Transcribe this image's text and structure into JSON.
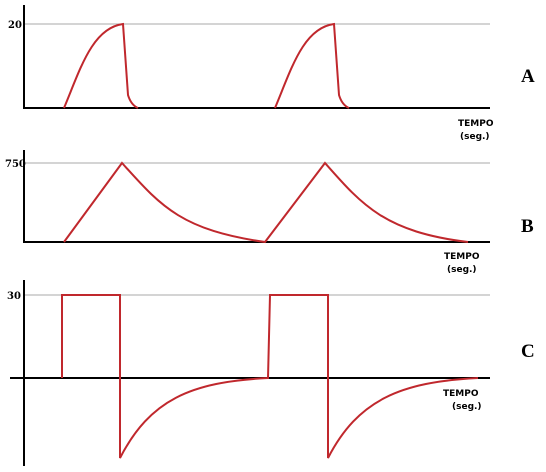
{
  "panels": [
    {
      "label": "A",
      "tick": "20",
      "xlabel": "TEMPO",
      "xunit": "(seg.)"
    },
    {
      "label": "B",
      "tick": "750",
      "xlabel": "TEMPO",
      "xunit": "(seg.)"
    },
    {
      "label": "C",
      "tick": "30",
      "xlabel": "TEMPO",
      "xunit": "(seg.)"
    }
  ]
}
